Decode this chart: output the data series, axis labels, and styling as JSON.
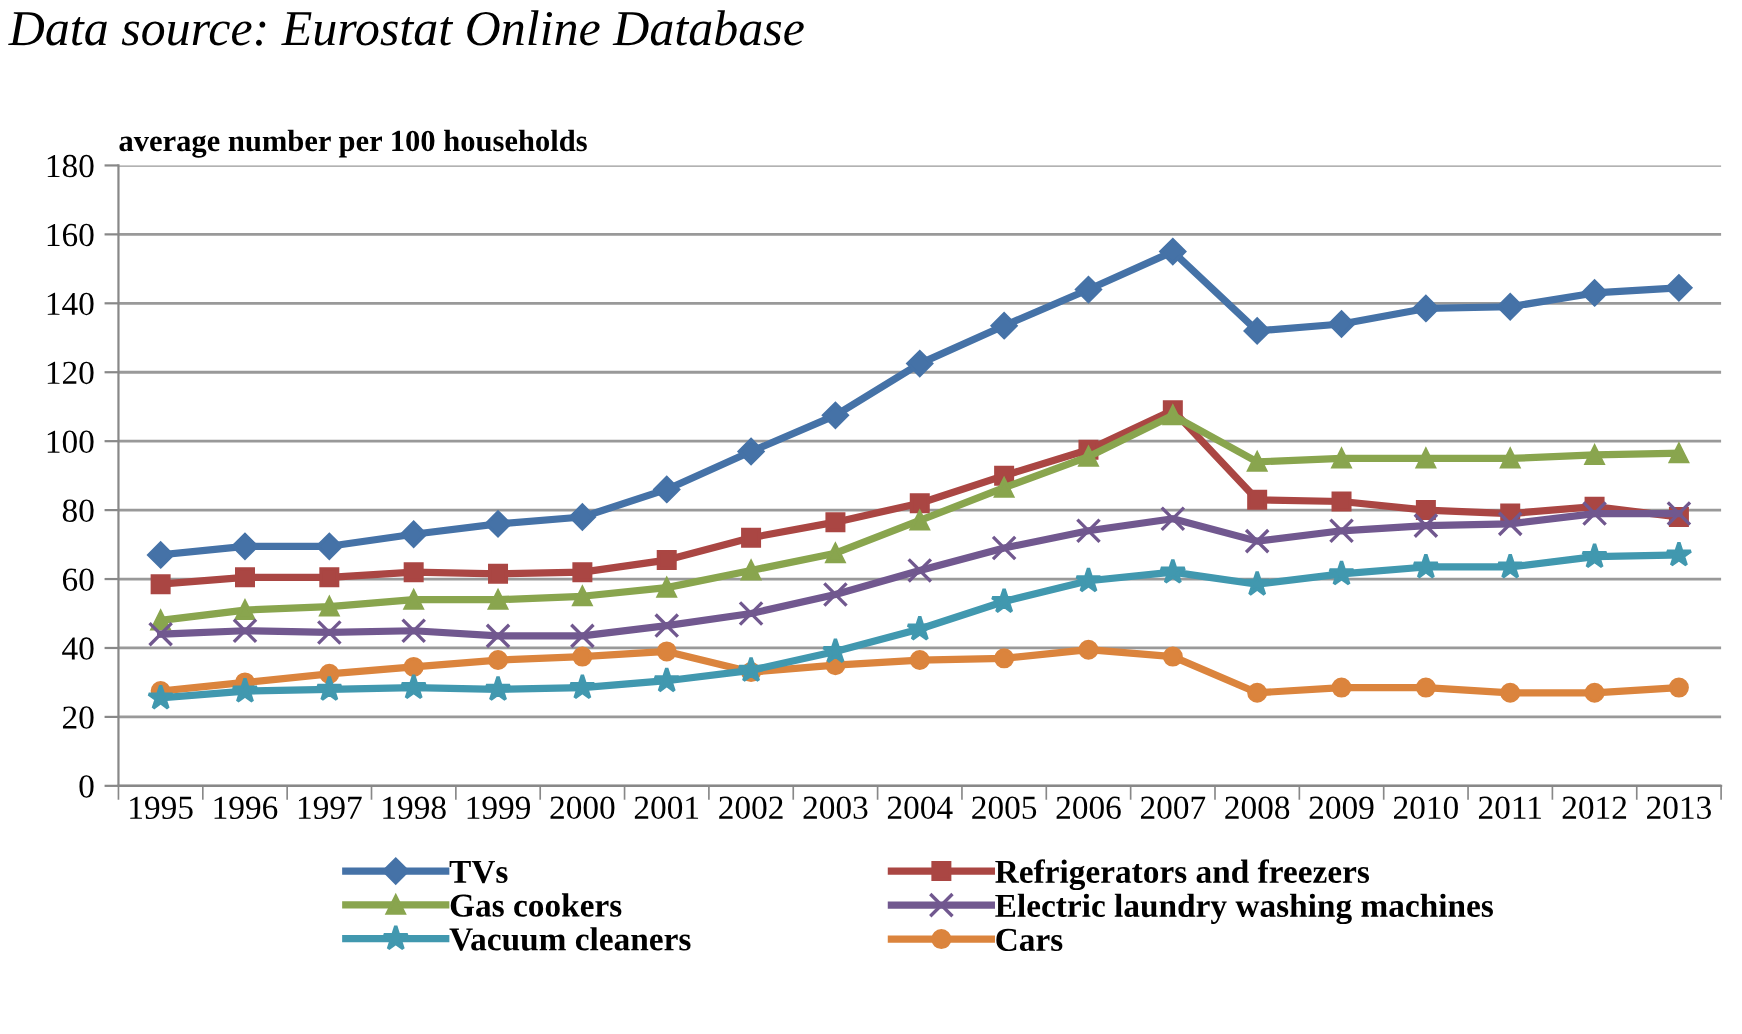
{
  "chart_data": {
    "type": "line",
    "annotations": [
      "Data source: Eurostat Online Database"
    ],
    "ylabel": "average number per 100 households",
    "categories": [
      "1995",
      "1996",
      "1997",
      "1998",
      "1999",
      "2000",
      "2001",
      "2002",
      "2003",
      "2004",
      "2005",
      "2006",
      "2007",
      "2008",
      "2009",
      "2010",
      "2011",
      "2012",
      "2013"
    ],
    "series": [
      {
        "name": "TVs",
        "color": "#4572a7",
        "marker": "diamond",
        "values": [
          67,
          69.5,
          69.5,
          73,
          76,
          78,
          86,
          97,
          107.5,
          122.5,
          133.5,
          144,
          155,
          132,
          134,
          138.5,
          139,
          143,
          144.5
        ]
      },
      {
        "name": "Refrigerators and freezers",
        "color": "#aa4643",
        "marker": "square",
        "values": [
          58.5,
          60.5,
          60.5,
          62,
          61.5,
          62,
          65.5,
          72,
          76.5,
          82,
          90,
          97.5,
          109,
          83,
          82.5,
          80,
          79,
          81,
          78
        ]
      },
      {
        "name": "Gas cookers",
        "color": "#89a54e",
        "marker": "triangle",
        "values": [
          48,
          51,
          52,
          54,
          54,
          55,
          57.5,
          62.5,
          67.5,
          77,
          86.5,
          95.5,
          107.5,
          94,
          95,
          95,
          95,
          96,
          96.5
        ]
      },
      {
        "name": "Electric laundry washing machines",
        "color": "#71588f",
        "marker": "cross",
        "values": [
          44,
          45,
          44.5,
          45,
          43.5,
          43.5,
          46.5,
          50,
          55.5,
          62.5,
          69,
          74,
          77.5,
          71,
          74,
          75.5,
          76,
          79,
          79
        ]
      },
      {
        "name": "Vacuum cleaners",
        "color": "#4198af",
        "marker": "star",
        "values": [
          25.5,
          27.5,
          28,
          28.5,
          28,
          28.5,
          30.5,
          33.5,
          39,
          45.5,
          53.5,
          59.5,
          62,
          58.5,
          61.5,
          63.5,
          63.5,
          66.5,
          67
        ]
      },
      {
        "name": "Cars",
        "color": "#db843d",
        "marker": "circle",
        "values": [
          27.5,
          30,
          32.5,
          34.5,
          36.5,
          37.5,
          39,
          33,
          35,
          36.5,
          37,
          39.5,
          37.5,
          27,
          28.5,
          28.5,
          27,
          27,
          28.5
        ]
      }
    ],
    "ylim": [
      0,
      180
    ],
    "yticks": [
      0,
      20,
      40,
      60,
      80,
      100,
      120,
      140,
      160,
      180
    ],
    "grid": "y",
    "legend": "bottom",
    "line_style": "solid"
  }
}
